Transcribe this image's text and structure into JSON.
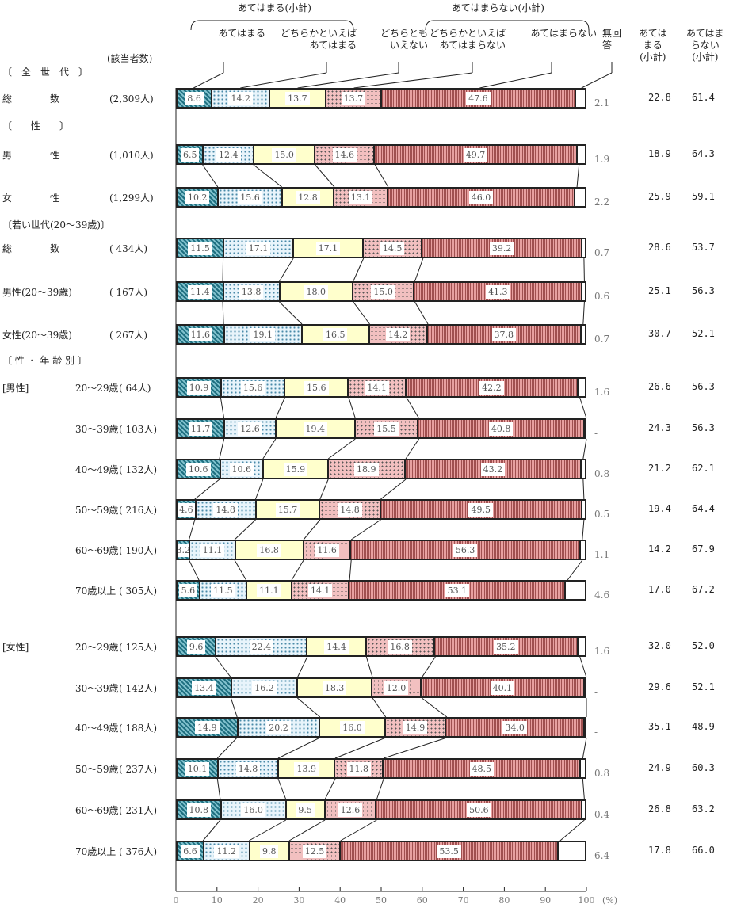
{
  "chart_data": {
    "type": "bar",
    "orientation": "horizontal-stacked-100",
    "group_headers": {
      "agree_subtotal": "あてはまる(小計)",
      "disagree_subtotal": "あてはまらない(小計)"
    },
    "legend": [
      "あてはまる",
      "どちらかといえば\nあてはまる",
      "どちらとも\nいえない",
      "どちらかといえば\nあてはまらない",
      "あてはまらない",
      "無回\n答"
    ],
    "series_names": [
      "あてはまる",
      "どちらかといえばあてはまる",
      "どちらともいえない",
      "どちらかといえばあてはまらない",
      "あてはまらない",
      "無回答"
    ],
    "count_header": "(該当者数)",
    "col_agree_header": "あては\nまる\n(小計)",
    "col_disagree_header": "あてはま\nらない\n(小計)",
    "section_headers": {
      "all": "〔　全　世　代　〕",
      "sex": "〔　　性　　〕",
      "young": "〔若い世代(20～39歳)〕",
      "sexage": "〔 性 ・ 年 齢 別 〕"
    },
    "rows": [
      {
        "group": "",
        "label": "総　　　　数",
        "n": "(2,309人)",
        "values": [
          8.6,
          14.2,
          13.7,
          13.7,
          47.6
        ],
        "no_answer": "2.1",
        "agree": "22.8",
        "disagree": "61.4"
      },
      {
        "group": "",
        "label": "男　　　　性",
        "n": "(1,010人)",
        "values": [
          6.5,
          12.4,
          15.0,
          14.6,
          49.7
        ],
        "no_answer": "1.9",
        "agree": "18.9",
        "disagree": "64.3"
      },
      {
        "group": "",
        "label": "女　　　　性",
        "n": "(1,299人)",
        "values": [
          10.2,
          15.6,
          12.8,
          13.1,
          46.0
        ],
        "no_answer": "2.2",
        "agree": "25.9",
        "disagree": "59.1"
      },
      {
        "group": "",
        "label": "総　　　　数",
        "n": "( 434人)",
        "values": [
          11.5,
          17.1,
          17.1,
          14.5,
          39.2
        ],
        "no_answer": "0.7",
        "agree": "28.6",
        "disagree": "53.7"
      },
      {
        "group": "",
        "label": "男性(20～39歳)",
        "n": "( 167人)",
        "values": [
          11.4,
          13.8,
          18.0,
          15.0,
          41.3
        ],
        "no_answer": "0.6",
        "agree": "25.1",
        "disagree": "56.3"
      },
      {
        "group": "",
        "label": "女性(20～39歳)",
        "n": "( 267人)",
        "values": [
          11.6,
          19.1,
          16.5,
          14.2,
          37.8
        ],
        "no_answer": "0.7",
        "agree": "30.7",
        "disagree": "52.1"
      },
      {
        "group": "[男性]",
        "label": "20～29歳",
        "n": "( 64人)",
        "values": [
          10.9,
          15.6,
          15.6,
          14.1,
          42.2
        ],
        "no_answer": "1.6",
        "agree": "26.6",
        "disagree": "56.3"
      },
      {
        "group": "",
        "label": "30～39歳",
        "n": "( 103人)",
        "values": [
          11.7,
          12.6,
          19.4,
          15.5,
          40.8
        ],
        "no_answer": "-",
        "agree": "24.3",
        "disagree": "56.3"
      },
      {
        "group": "",
        "label": "40～49歳",
        "n": "( 132人)",
        "values": [
          10.6,
          10.6,
          15.9,
          18.9,
          43.2
        ],
        "no_answer": "0.8",
        "agree": "21.2",
        "disagree": "62.1"
      },
      {
        "group": "",
        "label": "50～59歳",
        "n": "( 216人)",
        "values": [
          4.6,
          14.8,
          15.7,
          14.8,
          49.5
        ],
        "no_answer": "0.5",
        "agree": "19.4",
        "disagree": "64.4"
      },
      {
        "group": "",
        "label": "60～69歳",
        "n": "( 190人)",
        "values": [
          3.2,
          11.1,
          16.8,
          11.6,
          56.3
        ],
        "no_answer": "1.1",
        "agree": "14.2",
        "disagree": "67.9"
      },
      {
        "group": "",
        "label": "70歳以上",
        "n": "( 305人)",
        "values": [
          5.6,
          11.5,
          11.1,
          14.1,
          53.1
        ],
        "no_answer": "4.6",
        "agree": "17.0",
        "disagree": "67.2"
      },
      {
        "group": "[女性]",
        "label": "20～29歳",
        "n": "( 125人)",
        "values": [
          9.6,
          22.4,
          14.4,
          16.8,
          35.2
        ],
        "no_answer": "1.6",
        "agree": "32.0",
        "disagree": "52.0"
      },
      {
        "group": "",
        "label": "30～39歳",
        "n": "( 142人)",
        "values": [
          13.4,
          16.2,
          18.3,
          12.0,
          40.1
        ],
        "no_answer": "-",
        "agree": "29.6",
        "disagree": "52.1"
      },
      {
        "group": "",
        "label": "40～49歳",
        "n": "( 188人)",
        "values": [
          14.9,
          20.2,
          16.0,
          14.9,
          34.0
        ],
        "no_answer": "-",
        "agree": "35.1",
        "disagree": "48.9"
      },
      {
        "group": "",
        "label": "50～59歳",
        "n": "( 237人)",
        "values": [
          10.1,
          14.8,
          13.9,
          11.8,
          48.5
        ],
        "no_answer": "0.8",
        "agree": "24.9",
        "disagree": "60.3"
      },
      {
        "group": "",
        "label": "60～69歳",
        "n": "( 231人)",
        "values": [
          10.8,
          16.0,
          9.5,
          12.6,
          50.6
        ],
        "no_answer": "0.4",
        "agree": "26.8",
        "disagree": "63.2"
      },
      {
        "group": "",
        "label": "70歳以上",
        "n": "( 376人)",
        "values": [
          6.6,
          11.2,
          9.8,
          12.5,
          53.5
        ],
        "no_answer": "6.4",
        "agree": "17.8",
        "disagree": "66.0"
      }
    ],
    "x_ticks": [
      "0",
      "10",
      "20",
      "30",
      "40",
      "50",
      "60",
      "70",
      "80",
      "90",
      "100"
    ],
    "x_unit": "(%)",
    "xlim": [
      0,
      100
    ],
    "colors": [
      "#1e6f80",
      "#e8f4fb",
      "#ffffcc",
      "#f2c0c0",
      "#b06060",
      "#ffffff"
    ]
  }
}
